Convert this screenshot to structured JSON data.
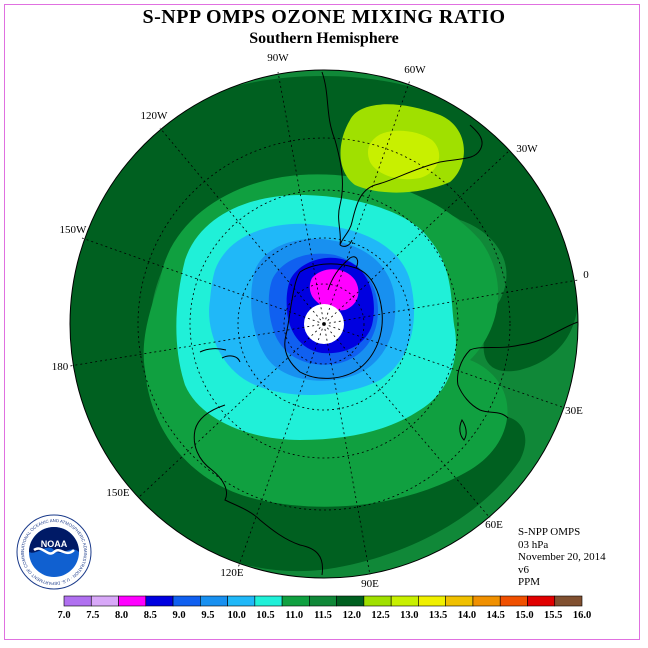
{
  "header": {
    "title": "S-NPP OMPS OZONE MIXING RATIO",
    "subtitle": "Southern Hemisphere"
  },
  "longitude_labels": [
    "90W",
    "60W",
    "30W",
    "0",
    "30E",
    "60E",
    "90E",
    "120E",
    "150E",
    "180",
    "150W",
    "120W"
  ],
  "info": {
    "instrument": "S-NPP OMPS",
    "level": "03 hPa",
    "date": "November 20, 2014",
    "version": "v6",
    "units": "PPM"
  },
  "logo": {
    "name": "NOAA",
    "ring_text": "NATIONAL OCEANIC AND ATMOSPHERIC ADMINISTRATION · U.S. DEPARTMENT OF COMMERCE"
  },
  "colorbar": {
    "ticks": [
      "7.0",
      "7.5",
      "8.0",
      "8.5",
      "9.0",
      "9.5",
      "10.0",
      "10.5",
      "11.0",
      "11.5",
      "12.0",
      "12.5",
      "13.0",
      "13.5",
      "14.0",
      "14.5",
      "15.0",
      "15.5",
      "16.0"
    ],
    "colors": [
      "#b070f0",
      "#d8a8f8",
      "#ff00ff",
      "#0000e0",
      "#1060f0",
      "#1890f0",
      "#20b8f8",
      "#20f0d8",
      "#10a040",
      "#108838",
      "#006020",
      "#a0e000",
      "#c8f000",
      "#f0f000",
      "#f0c000",
      "#f09000",
      "#f05000",
      "#e00000",
      "#805030"
    ]
  },
  "map_colors": {
    "ocean_outer": "#108838",
    "band_dark": "#006020",
    "band_mid": "#10a040",
    "lime": "#a0e000",
    "yellow_green": "#c8f000",
    "cyan": "#20f0d8",
    "sky": "#20b8f8",
    "blue_light": "#1890f0",
    "blue_mid": "#1060f0",
    "blue_dark": "#0000e0",
    "magenta": "#ff00ff",
    "pole": "#ffffff"
  }
}
